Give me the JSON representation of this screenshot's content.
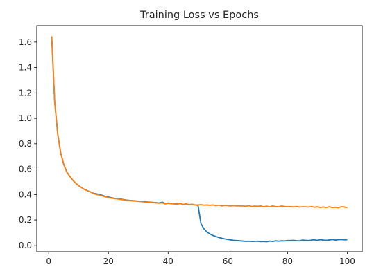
{
  "chart_data": {
    "type": "line",
    "title": "Training Loss vs Epochs",
    "xlabel": "",
    "ylabel": "",
    "xlim": [
      -4,
      105
    ],
    "ylim": [
      -0.05,
      1.73
    ],
    "x_ticks": [
      0,
      20,
      40,
      60,
      80,
      100
    ],
    "x_tick_labels": [
      "0",
      "20",
      "40",
      "60",
      "80",
      "100"
    ],
    "y_ticks": [
      0.0,
      0.2,
      0.4,
      0.6,
      0.8,
      1.0,
      1.2,
      1.4,
      1.6
    ],
    "y_tick_labels": [
      "0.0",
      "0.2",
      "0.4",
      "0.6",
      "0.8",
      "1.0",
      "1.2",
      "1.4",
      "1.6"
    ],
    "grid": false,
    "legend": "none",
    "series": [
      {
        "color": "#1f77b4",
        "x": [
          1,
          2,
          3,
          4,
          5,
          6,
          7,
          8,
          9,
          10,
          11,
          12,
          13,
          14,
          15,
          16,
          17,
          18,
          19,
          20,
          21,
          22,
          23,
          24,
          25,
          26,
          27,
          28,
          29,
          30,
          31,
          32,
          33,
          34,
          35,
          36,
          37,
          38,
          39,
          40,
          41,
          42,
          43,
          44,
          45,
          46,
          47,
          48,
          49,
          50,
          51,
          52,
          53,
          54,
          55,
          56,
          57,
          58,
          59,
          60,
          61,
          62,
          63,
          64,
          65,
          66,
          67,
          68,
          69,
          70,
          71,
          72,
          73,
          74,
          75,
          76,
          77,
          78,
          79,
          80,
          81,
          82,
          83,
          84,
          85,
          86,
          87,
          88,
          89,
          90,
          91,
          92,
          93,
          94,
          95,
          96,
          97,
          98,
          99,
          100
        ],
        "y": [
          1.645,
          1.13,
          0.88,
          0.73,
          0.64,
          0.58,
          0.545,
          0.515,
          0.49,
          0.47,
          0.455,
          0.44,
          0.43,
          0.42,
          0.41,
          0.405,
          0.4,
          0.393,
          0.385,
          0.38,
          0.375,
          0.37,
          0.368,
          0.365,
          0.36,
          0.357,
          0.354,
          0.352,
          0.35,
          0.348,
          0.346,
          0.344,
          0.342,
          0.34,
          0.338,
          0.336,
          0.334,
          0.34,
          0.33,
          0.333,
          0.33,
          0.328,
          0.325,
          0.33,
          0.322,
          0.325,
          0.32,
          0.322,
          0.318,
          0.315,
          0.17,
          0.13,
          0.105,
          0.09,
          0.078,
          0.07,
          0.062,
          0.056,
          0.051,
          0.047,
          0.043,
          0.04,
          0.038,
          0.036,
          0.034,
          0.032,
          0.033,
          0.031,
          0.032,
          0.033,
          0.03,
          0.031,
          0.029,
          0.034,
          0.031,
          0.036,
          0.033,
          0.036,
          0.035,
          0.038,
          0.038,
          0.04,
          0.037,
          0.036,
          0.042,
          0.04,
          0.038,
          0.042,
          0.044,
          0.04,
          0.045,
          0.042,
          0.04,
          0.043,
          0.046,
          0.042,
          0.045,
          0.046,
          0.044,
          0.045
        ]
      },
      {
        "color": "#ff7f0e",
        "x": [
          1,
          2,
          3,
          4,
          5,
          6,
          7,
          8,
          9,
          10,
          11,
          12,
          13,
          14,
          15,
          16,
          17,
          18,
          19,
          20,
          21,
          22,
          23,
          24,
          25,
          26,
          27,
          28,
          29,
          30,
          31,
          32,
          33,
          34,
          35,
          36,
          37,
          38,
          39,
          40,
          41,
          42,
          43,
          44,
          45,
          46,
          47,
          48,
          49,
          50,
          51,
          52,
          53,
          54,
          55,
          56,
          57,
          58,
          59,
          60,
          61,
          62,
          63,
          64,
          65,
          66,
          67,
          68,
          69,
          70,
          71,
          72,
          73,
          74,
          75,
          76,
          77,
          78,
          79,
          80,
          81,
          82,
          83,
          84,
          85,
          86,
          87,
          88,
          89,
          90,
          91,
          92,
          93,
          94,
          95,
          96,
          97,
          98,
          99,
          100
        ],
        "y": [
          1.645,
          1.13,
          0.88,
          0.73,
          0.64,
          0.58,
          0.545,
          0.515,
          0.49,
          0.47,
          0.455,
          0.44,
          0.43,
          0.42,
          0.408,
          0.4,
          0.396,
          0.388,
          0.382,
          0.376,
          0.372,
          0.368,
          0.365,
          0.362,
          0.358,
          0.356,
          0.353,
          0.35,
          0.348,
          0.346,
          0.344,
          0.342,
          0.34,
          0.338,
          0.336,
          0.334,
          0.332,
          0.335,
          0.326,
          0.331,
          0.328,
          0.326,
          0.324,
          0.33,
          0.322,
          0.326,
          0.32,
          0.324,
          0.318,
          0.318,
          0.32,
          0.316,
          0.318,
          0.315,
          0.318,
          0.312,
          0.316,
          0.31,
          0.314,
          0.312,
          0.31,
          0.313,
          0.31,
          0.311,
          0.31,
          0.308,
          0.312,
          0.306,
          0.309,
          0.307,
          0.31,
          0.304,
          0.308,
          0.303,
          0.31,
          0.305,
          0.303,
          0.31,
          0.306,
          0.304,
          0.305,
          0.302,
          0.306,
          0.301,
          0.304,
          0.303,
          0.301,
          0.305,
          0.3,
          0.303,
          0.298,
          0.302,
          0.298,
          0.304,
          0.297,
          0.3,
          0.296,
          0.304,
          0.302,
          0.296
        ]
      }
    ]
  }
}
